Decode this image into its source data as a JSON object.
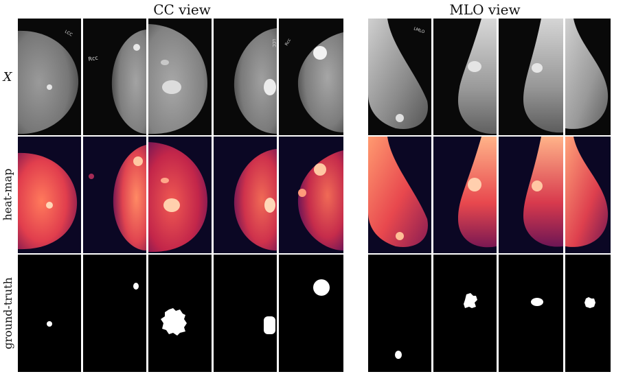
{
  "groups": {
    "cc_title": "CC view",
    "mlo_title": "MLO view"
  },
  "rows": {
    "x_label": "X",
    "heatmap_label": "heat-map",
    "groundtruth_label": "ground-truth"
  },
  "image_marker_text": {
    "cc1": "LCC",
    "cc2": "Rcc",
    "cc4": "LCC",
    "cc5": "Rcc",
    "mlo1": "LMLO"
  },
  "colors": {
    "heatmap_background": "#0b0724",
    "heatmap_tissue": "#c3264a",
    "heatmap_hot": "#ffc8a3",
    "mammogram_background": "#080808",
    "mask_foreground": "#ffffff"
  }
}
